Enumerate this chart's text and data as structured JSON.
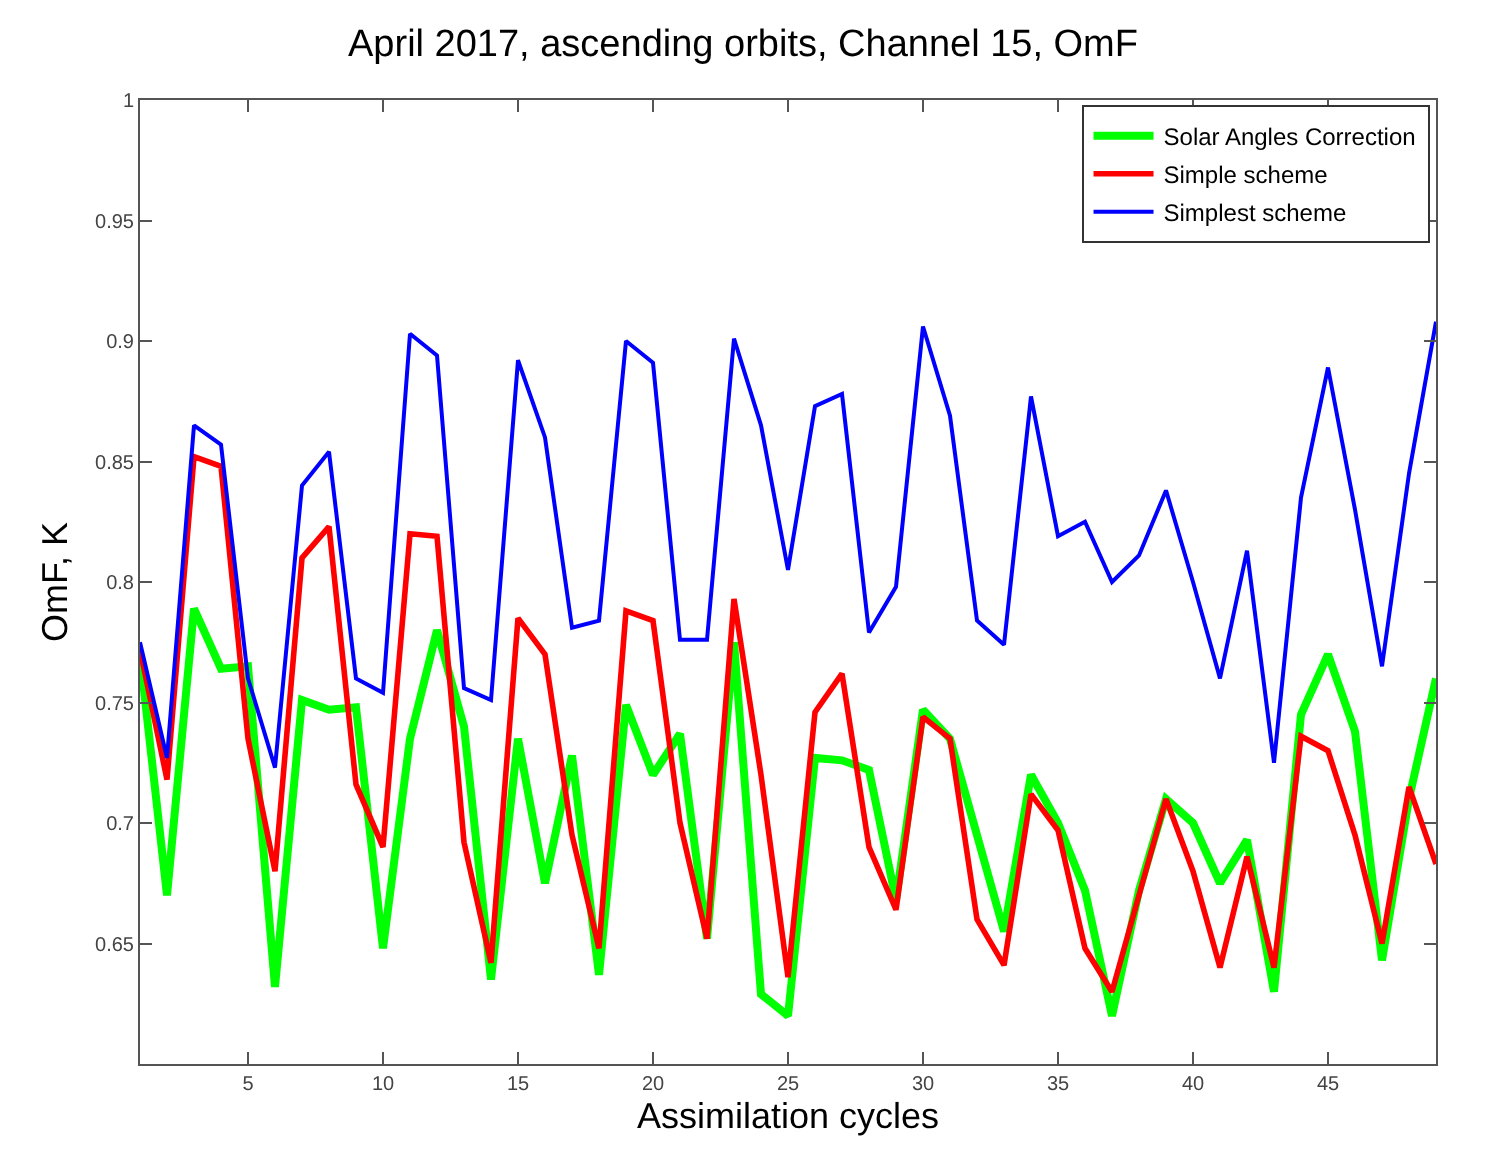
{
  "chart_data": {
    "type": "line",
    "title": "April 2017, ascending orbits, Channel 15, OmF",
    "xlabel": "Assimilation cycles",
    "ylabel": "OmF, K",
    "x": [
      1,
      2,
      3,
      4,
      5,
      6,
      7,
      8,
      9,
      10,
      11,
      12,
      13,
      14,
      15,
      16,
      17,
      18,
      19,
      20,
      21,
      22,
      23,
      24,
      25,
      26,
      27,
      28,
      29,
      30,
      31,
      32,
      33,
      34,
      35,
      36,
      37,
      38,
      39,
      40,
      41,
      42,
      43,
      44,
      45,
      46,
      47,
      48,
      49
    ],
    "series": [
      {
        "name": "Solar Angles Correction",
        "color": "#00ff00",
        "values": [
          0.77,
          0.67,
          0.789,
          0.764,
          0.765,
          0.632,
          0.751,
          0.747,
          0.748,
          0.648,
          0.735,
          0.78,
          0.74,
          0.635,
          0.735,
          0.675,
          0.728,
          0.637,
          0.749,
          0.72,
          0.737,
          0.652,
          0.775,
          0.629,
          0.62,
          0.727,
          0.726,
          0.722,
          0.668,
          0.747,
          0.735,
          0.695,
          0.655,
          0.72,
          0.7,
          0.672,
          0.62,
          0.672,
          0.71,
          0.7,
          0.675,
          0.693,
          0.63,
          0.745,
          0.77,
          0.738,
          0.643,
          0.71,
          0.76
        ]
      },
      {
        "name": "Simple scheme",
        "color": "#ff0000",
        "values": [
          0.772,
          0.718,
          0.852,
          0.848,
          0.735,
          0.68,
          0.81,
          0.823,
          0.716,
          0.69,
          0.82,
          0.819,
          0.692,
          0.642,
          0.785,
          0.77,
          0.695,
          0.648,
          0.788,
          0.784,
          0.7,
          0.652,
          0.793,
          0.72,
          0.636,
          0.746,
          0.762,
          0.69,
          0.664,
          0.744,
          0.735,
          0.66,
          0.641,
          0.712,
          0.697,
          0.648,
          0.63,
          0.67,
          0.71,
          0.68,
          0.64,
          0.686,
          0.64,
          0.736,
          0.73,
          0.695,
          0.65,
          0.715,
          0.683
        ]
      },
      {
        "name": "Simplest scheme",
        "color": "#0000ff",
        "values": [
          0.775,
          0.727,
          0.865,
          0.857,
          0.76,
          0.723,
          0.84,
          0.854,
          0.76,
          0.754,
          0.903,
          0.894,
          0.756,
          0.751,
          0.892,
          0.86,
          0.781,
          0.784,
          0.9,
          0.891,
          0.776,
          0.776,
          0.901,
          0.865,
          0.805,
          0.873,
          0.878,
          0.779,
          0.798,
          0.906,
          0.869,
          0.784,
          0.774,
          0.877,
          0.819,
          0.825,
          0.8,
          0.811,
          0.838,
          0.8,
          0.76,
          0.813,
          0.725,
          0.835,
          0.889,
          0.83,
          0.765,
          0.845,
          0.908
        ]
      }
    ],
    "xlim": [
      1,
      49
    ],
    "xticks": [
      5,
      10,
      15,
      20,
      25,
      30,
      35,
      40,
      45
    ],
    "ylim": [
      0.6,
      1
    ],
    "yticks": [
      0.65,
      0.7,
      0.75,
      0.8,
      0.85,
      0.9,
      0.95,
      1
    ],
    "grid": false,
    "legend": "top right",
    "marker": "none",
    "line_style": "solid"
  }
}
